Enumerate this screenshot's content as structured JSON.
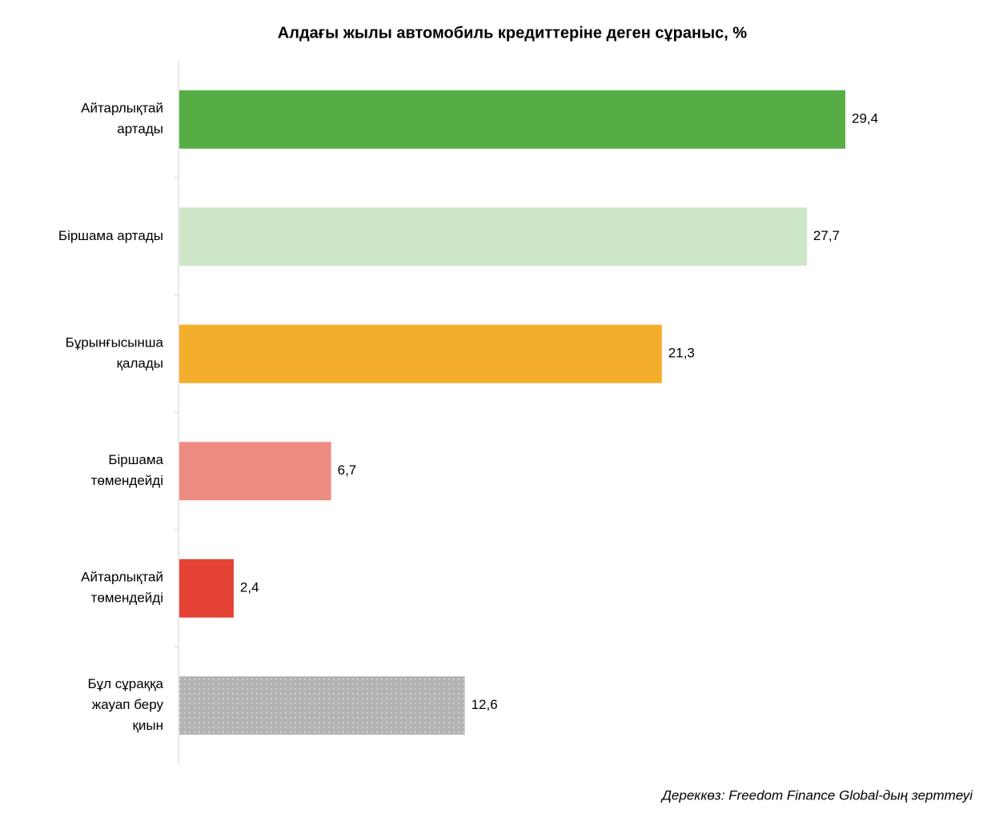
{
  "chart_data": {
    "type": "barh",
    "title": "Алдағы жылы автомобиль кредиттеріне деген сұраныс, %",
    "categories": [
      "Айтарлықтай\nартады",
      "Біршама артады",
      "Бұрынғысынша\nқалады",
      "Біршама\nтөмендейді",
      "Айтарлықтай\nтөмендейді",
      "Бұл сұраққа\nжауап беру\nқиын"
    ],
    "values": [
      29.4,
      27.7,
      21.3,
      6.7,
      2.4,
      12.6
    ],
    "value_labels": [
      "29,4",
      "27,7",
      "21,3",
      "6,7",
      "2,4",
      "12,6"
    ],
    "colors": [
      "#55ad44",
      "#cde7c8",
      "#f5ae2b",
      "#ee8c82",
      "#e44234",
      "#b3b3b3"
    ],
    "patterns": [
      null,
      null,
      null,
      null,
      null,
      "dots"
    ],
    "xlim": [
      0,
      30
    ],
    "source": "Дереккөз: Freedom Finance Global-дың зерттеуі"
  }
}
